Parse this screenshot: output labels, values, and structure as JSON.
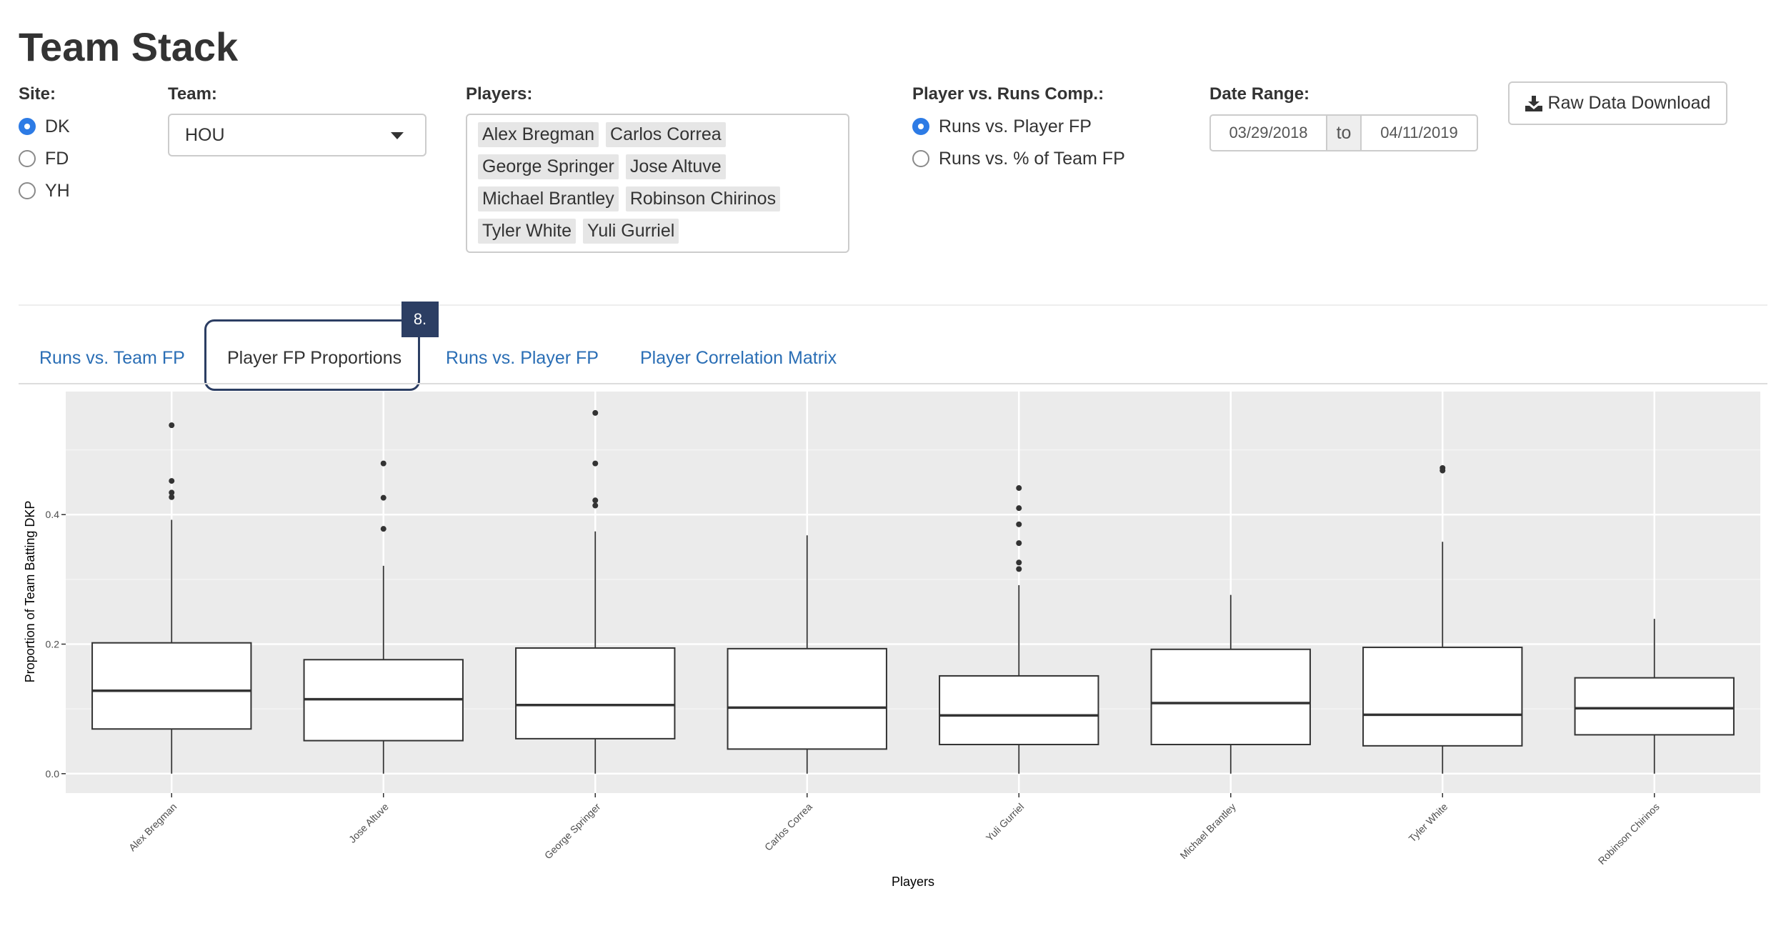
{
  "page": {
    "title": "Team Stack"
  },
  "site": {
    "label": "Site:",
    "options": [
      {
        "label": "DK",
        "checked": true
      },
      {
        "label": "FD",
        "checked": false
      },
      {
        "label": "YH",
        "checked": false
      }
    ]
  },
  "team": {
    "label": "Team:",
    "value": "HOU"
  },
  "players": {
    "label": "Players:",
    "chips": [
      "Alex Bregman",
      "Carlos Correa",
      "George Springer",
      "Jose Altuve",
      "Michael Brantley",
      "Robinson Chirinos",
      "Tyler White",
      "Yuli Gurriel"
    ]
  },
  "comp": {
    "label": "Player vs. Runs Comp.:",
    "options": [
      {
        "label": "Runs vs. Player FP",
        "checked": true
      },
      {
        "label": "Runs vs. % of Team FP",
        "checked": false
      }
    ]
  },
  "date_range": {
    "label": "Date Range:",
    "start": "03/29/2018",
    "separator": "to",
    "end": "04/11/2019"
  },
  "download": {
    "label": "Raw Data Download",
    "icon": "download-icon"
  },
  "tabs": [
    {
      "label": "Runs vs. Team FP",
      "active": false
    },
    {
      "label": "Player FP Proportions",
      "active": true
    },
    {
      "label": "Runs vs. Player FP",
      "active": false
    },
    {
      "label": "Player Correlation Matrix",
      "active": false
    }
  ],
  "annotation": {
    "badge": "8."
  },
  "colors": {
    "link": "#2a6eb5",
    "radio_checked": "#2d7be5",
    "badge_bg": "#2c3e63",
    "plot_bg": "#ebebeb"
  },
  "chart_data": {
    "type": "boxplot",
    "xlabel": "Players",
    "ylabel": "Proportion of Team Batting DKP",
    "ylim": [
      -0.03,
      0.59
    ],
    "yticks": [
      0.0,
      0.2,
      0.4
    ],
    "ytick_labels": [
      "0.0",
      "0.2",
      "0.4"
    ],
    "grid": true,
    "categories": [
      "Alex Bregman",
      "Jose Altuve",
      "George Springer",
      "Carlos Correa",
      "Yuli Gurriel",
      "Michael Brantley",
      "Tyler White",
      "Robinson Chirinos"
    ],
    "boxes": [
      {
        "whisker_low": 0.0,
        "q1": 0.069,
        "median": 0.128,
        "q3": 0.202,
        "whisker_high": 0.392,
        "outliers": [
          0.538,
          0.452,
          0.434,
          0.427
        ]
      },
      {
        "whisker_low": 0.0,
        "q1": 0.051,
        "median": 0.115,
        "q3": 0.176,
        "whisker_high": 0.321,
        "outliers": [
          0.479,
          0.426,
          0.378
        ]
      },
      {
        "whisker_low": 0.0,
        "q1": 0.054,
        "median": 0.106,
        "q3": 0.194,
        "whisker_high": 0.374,
        "outliers": [
          0.557,
          0.479,
          0.422,
          0.414
        ]
      },
      {
        "whisker_low": 0.0,
        "q1": 0.038,
        "median": 0.102,
        "q3": 0.193,
        "whisker_high": 0.368,
        "outliers": []
      },
      {
        "whisker_low": 0.0,
        "q1": 0.045,
        "median": 0.09,
        "q3": 0.151,
        "whisker_high": 0.291,
        "outliers": [
          0.441,
          0.41,
          0.385,
          0.356,
          0.326,
          0.316
        ]
      },
      {
        "whisker_low": 0.0,
        "q1": 0.045,
        "median": 0.109,
        "q3": 0.192,
        "whisker_high": 0.276,
        "outliers": []
      },
      {
        "whisker_low": 0.0,
        "q1": 0.043,
        "median": 0.091,
        "q3": 0.195,
        "whisker_high": 0.358,
        "outliers": [
          0.472,
          0.468
        ]
      },
      {
        "whisker_low": 0.0,
        "q1": 0.06,
        "median": 0.101,
        "q3": 0.148,
        "whisker_high": 0.239,
        "outliers": []
      }
    ]
  }
}
